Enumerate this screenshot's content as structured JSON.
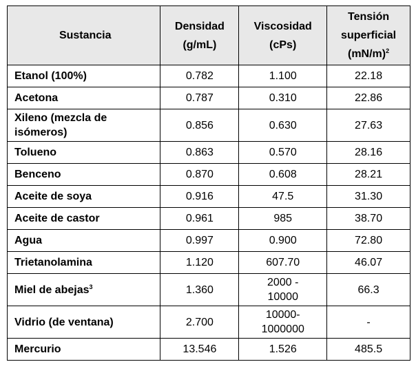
{
  "table": {
    "header": [
      "Sustancia",
      [
        "Densidad",
        "(g/mL)"
      ],
      [
        "Viscosidad",
        "(cPs)"
      ],
      [
        "Tensión",
        "superficial",
        {
          "text": "(mN/m)",
          "sup": "2"
        }
      ]
    ],
    "rows": [
      [
        "Etanol (100%)",
        "0.782",
        "1.100",
        "22.18"
      ],
      [
        "Acetona",
        "0.787",
        "0.310",
        "22.86"
      ],
      [
        [
          "Xileno (mezcla de",
          "isómeros)"
        ],
        "0.856",
        "0.630",
        "27.63"
      ],
      [
        "Tolueno",
        "0.863",
        "0.570",
        "28.16"
      ],
      [
        "Benceno",
        "0.870",
        "0.608",
        "28.21"
      ],
      [
        "Aceite de soya",
        "0.916",
        "47.5",
        "31.30"
      ],
      [
        "Aceite de castor",
        "0.961",
        "985",
        "38.70"
      ],
      [
        "Agua",
        "0.997",
        "0.900",
        "72.80"
      ],
      [
        "Trietanolamina",
        "1.120",
        "607.70",
        "46.07"
      ],
      [
        {
          "text": "Miel de abejas",
          "sup": "3"
        },
        "1.360",
        [
          "2000 -",
          "10000"
        ],
        "66.3"
      ],
      [
        "Vidrio (de ventana)",
        "2.700",
        [
          "10000-",
          "1000000"
        ],
        "-"
      ],
      [
        "Mercurio",
        "13.546",
        "1.526",
        "485.5"
      ]
    ]
  }
}
